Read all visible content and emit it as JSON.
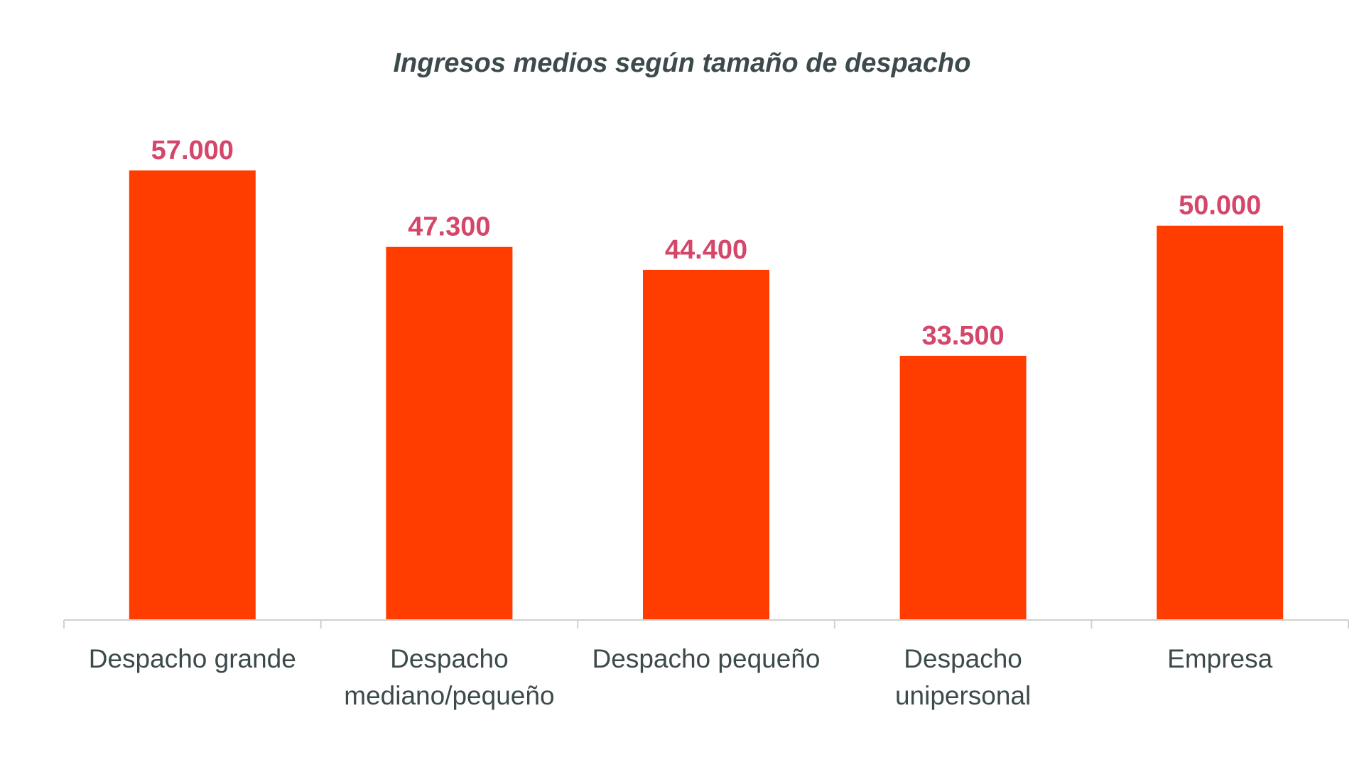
{
  "chart_data": {
    "type": "bar",
    "title": "Ingresos medios según tamaño de despacho",
    "xlabel": "",
    "ylabel": "",
    "categories": [
      [
        "Despacho grande"
      ],
      [
        "Despacho",
        "mediano/pequeño"
      ],
      [
        "Despacho pequeño"
      ],
      [
        "Despacho",
        "unipersonal"
      ],
      [
        "Empresa"
      ]
    ],
    "values": [
      57000,
      47300,
      44400,
      33500,
      50000
    ],
    "value_labels": [
      "57.000",
      "47.300",
      "44.400",
      "33.500",
      "50.000"
    ],
    "ylim": [
      0,
      57000
    ],
    "grid": false,
    "legend": "none"
  },
  "colors": {
    "bar": "#ff3d00",
    "value_label": "#d4466a",
    "axis": "#d0d0d0",
    "category_label": "#3d4a4b",
    "title": "#3d4a4b"
  }
}
